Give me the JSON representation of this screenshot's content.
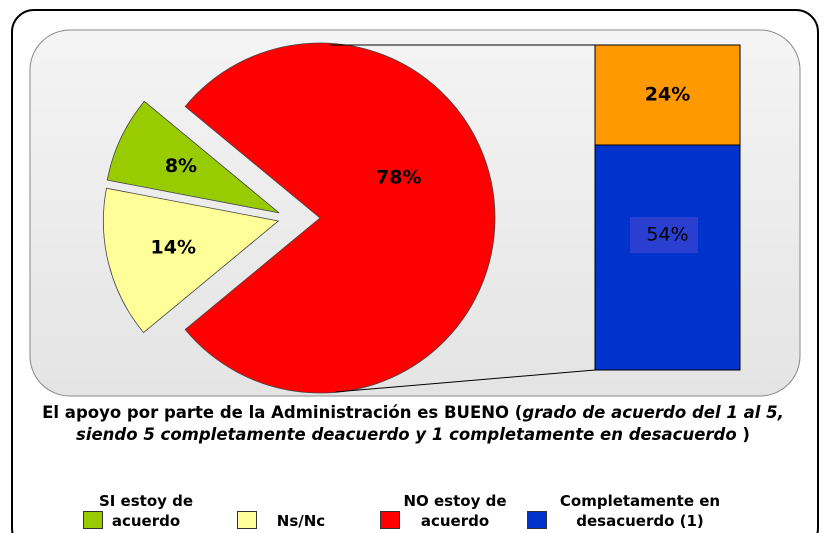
{
  "chart_data": {
    "type": "pie",
    "title": [
      "El apoyo por parte de la Administración es BUENO (",
      "grado de acuerdo del 1 al 5, siendo 5 completamente deacuerdo y 1 completamente en desacuerdo",
      " )"
    ],
    "categories": [
      "SI estoy de acuerdo",
      "Ns/Nc",
      "NO estoy de acuerdo"
    ],
    "values": [
      8,
      14,
      78
    ],
    "value_labels": [
      "8%",
      "14%",
      "78%"
    ],
    "colors": [
      "#99cc00",
      "#ffff99",
      "#ff0000"
    ],
    "bar": {
      "categories": [
        null,
        "Completamente en desacuerdo (1)"
      ],
      "values": [
        24,
        54
      ],
      "value_labels": [
        "24%",
        "54%"
      ],
      "colors": [
        "#ff9900",
        "#0033cc"
      ]
    }
  }
}
